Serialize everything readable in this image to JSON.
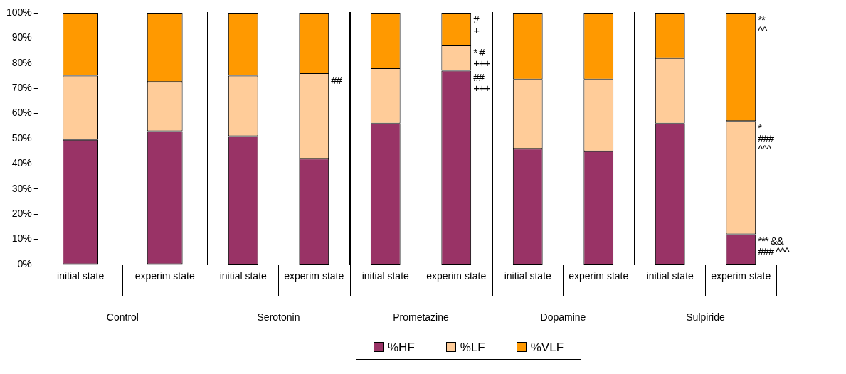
{
  "chart_data": [
    {
      "type": "bar",
      "stacked": true,
      "xlabel": "Control",
      "categories": [
        "initial state",
        "experim state"
      ],
      "ylim": [
        0,
        100
      ],
      "yticks": [
        {
          "value": 0,
          "label": "0%"
        },
        {
          "value": 10,
          "label": "10%"
        },
        {
          "value": 20,
          "label": "20%"
        },
        {
          "value": 30,
          "label": "30%"
        },
        {
          "value": 40,
          "label": "40%"
        },
        {
          "value": 50,
          "label": "50%"
        },
        {
          "value": 60,
          "label": "60%"
        },
        {
          "value": 70,
          "label": "70%"
        },
        {
          "value": 80,
          "label": "80%"
        },
        {
          "value": 90,
          "label": "90%"
        },
        {
          "value": 100,
          "label": "100%"
        }
      ],
      "grid": false,
      "legend": "bottom",
      "series": [
        {
          "name": "%HF",
          "color": "#993366",
          "values": [
            49.5,
            53
          ]
        },
        {
          "name": "%LF",
          "color": "#ffcc99",
          "values": [
            25.5,
            19.5
          ]
        },
        {
          "name": "%VLF",
          "color": "#ff9900",
          "values": [
            25,
            27.5
          ]
        }
      ]
    },
    {
      "type": "bar",
      "stacked": true,
      "xlabel": "Serotonin",
      "categories": [
        "initial state",
        "experim state"
      ],
      "ylim": [
        0,
        100
      ],
      "tick_labels": "x",
      "grid": false,
      "series": [
        {
          "color": "#993366",
          "values": [
            51,
            42
          ]
        },
        {
          "color": "#ffcc99",
          "values": [
            24,
            34
          ]
        },
        {
          "color": "#ff9900",
          "values": [
            25,
            24
          ]
        }
      ],
      "annotations": [
        {
          "text": "##",
          "x": "experim state",
          "y": 76
        }
      ]
    },
    {
      "type": "bar",
      "stacked": true,
      "xlabel": "Prometazine",
      "categories": [
        "initial state",
        "experim state"
      ],
      "ylim": [
        0,
        100
      ],
      "tick_labels": "x",
      "grid": false,
      "series": [
        {
          "color": "#993366",
          "values": [
            56,
            77
          ]
        },
        {
          "color": "#ffcc99",
          "values": [
            22,
            10
          ]
        },
        {
          "color": "#ff9900",
          "values": [
            22,
            13
          ]
        }
      ],
      "annotations": [
        {
          "text": "#\n+",
          "x": "experim state",
          "y": 100
        },
        {
          "text": "* #\n+++",
          "x": "experim state",
          "y": 87
        },
        {
          "text": "##\n+++",
          "x": "experim state",
          "y": 77
        }
      ]
    },
    {
      "type": "bar",
      "stacked": true,
      "xlabel": "Dopamine",
      "categories": [
        "initial state",
        "experim state"
      ],
      "ylim": [
        0,
        100
      ],
      "tick_labels": "x",
      "grid": false,
      "series": [
        {
          "color": "#993366",
          "values": [
            46,
            45
          ]
        },
        {
          "color": "#ffcc99",
          "values": [
            27.5,
            28.5
          ]
        },
        {
          "color": "#ff9900",
          "values": [
            26.5,
            26.5
          ]
        }
      ]
    },
    {
      "type": "bar",
      "stacked": true,
      "xlabel": "Sulpiride",
      "categories": [
        "initial state",
        "experim state"
      ],
      "ylim": [
        0,
        100
      ],
      "tick_labels": "x",
      "grid": false,
      "series": [
        {
          "color": "#993366",
          "values": [
            56,
            12
          ]
        },
        {
          "color": "#ffcc99",
          "values": [
            26,
            45
          ]
        },
        {
          "color": "#ff9900",
          "values": [
            18,
            43
          ]
        }
      ],
      "annotations": [
        {
          "text": "**\n^^",
          "x": "experim state",
          "y": 100
        },
        {
          "text": "*\n###\n^^^",
          "x": "experim state",
          "y": 57
        },
        {
          "text": "*** &&\n### ^^^",
          "x": "experim state",
          "y": 12
        }
      ]
    }
  ]
}
